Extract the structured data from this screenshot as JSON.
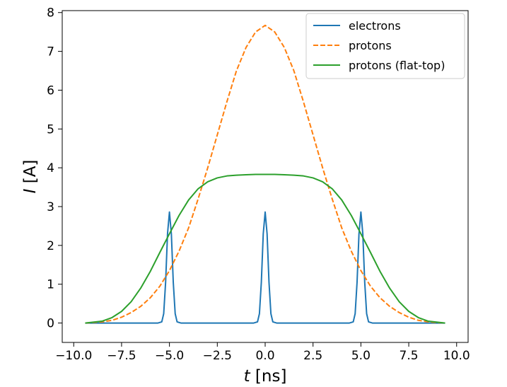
{
  "chart_data": {
    "type": "line",
    "xlabel": "t [ns]",
    "ylabel": "I [A]",
    "xlim": [
      -10.6,
      10.6
    ],
    "ylim": [
      -0.5,
      8.05
    ],
    "xticks": [
      -10.0,
      -7.5,
      -5.0,
      -2.5,
      0.0,
      2.5,
      5.0,
      7.5,
      10.0
    ],
    "xtick_labels": [
      "−10.0",
      "−7.5",
      "−5.0",
      "−2.5",
      "0.0",
      "2.5",
      "5.0",
      "7.5",
      "10.0"
    ],
    "yticks": [
      0,
      1,
      2,
      3,
      4,
      5,
      6,
      7,
      8
    ],
    "ytick_labels": [
      "0",
      "1",
      "2",
      "3",
      "4",
      "5",
      "6",
      "7",
      "8"
    ],
    "grid": false,
    "legend_position": "top-right",
    "x_range": [
      -9.4,
      9.4
    ],
    "series": [
      {
        "name": "electrons",
        "color": "#1f77b4",
        "style": "solid",
        "x": [
          -9.4,
          -5.6,
          -5.4,
          -5.3,
          -5.2,
          -5.1,
          -5.0,
          -4.9,
          -4.8,
          -4.7,
          -4.6,
          -4.4,
          -0.6,
          -0.4,
          -0.3,
          -0.2,
          -0.1,
          0.0,
          0.1,
          0.2,
          0.3,
          0.4,
          0.6,
          4.4,
          4.6,
          4.7,
          4.8,
          4.9,
          5.0,
          5.1,
          5.2,
          5.3,
          5.4,
          5.6,
          9.4
        ],
        "y": [
          0.0,
          0.0,
          0.03,
          0.24,
          1.05,
          2.3,
          2.86,
          2.3,
          1.05,
          0.24,
          0.03,
          0.0,
          0.0,
          0.03,
          0.24,
          1.05,
          2.3,
          2.86,
          2.3,
          1.05,
          0.24,
          0.03,
          0.0,
          0.0,
          0.03,
          0.24,
          1.05,
          2.3,
          2.86,
          2.3,
          1.05,
          0.24,
          0.03,
          0.0,
          0.0
        ]
      },
      {
        "name": "protons",
        "color": "#ff7f0e",
        "style": "dashed",
        "x": [
          -9.4,
          -8.5,
          -8.0,
          -7.5,
          -7.0,
          -6.5,
          -6.0,
          -5.5,
          -5.0,
          -4.5,
          -4.0,
          -3.5,
          -3.0,
          -2.5,
          -2.0,
          -1.5,
          -1.0,
          -0.5,
          0.0,
          0.5,
          1.0,
          1.5,
          2.0,
          2.5,
          3.0,
          3.5,
          4.0,
          4.5,
          5.0,
          5.5,
          6.0,
          6.5,
          7.0,
          7.5,
          8.0,
          8.5,
          9.4
        ],
        "y": [
          0.0,
          0.03,
          0.07,
          0.15,
          0.27,
          0.43,
          0.65,
          0.95,
          1.35,
          1.85,
          2.45,
          3.2,
          4.0,
          4.85,
          5.7,
          6.5,
          7.1,
          7.5,
          7.67,
          7.5,
          7.1,
          6.5,
          5.7,
          4.85,
          4.0,
          3.2,
          2.45,
          1.85,
          1.35,
          0.95,
          0.65,
          0.43,
          0.27,
          0.15,
          0.07,
          0.03,
          0.0
        ]
      },
      {
        "name": "protons (flat-top)",
        "color": "#2ca02c",
        "style": "solid",
        "x": [
          -9.4,
          -8.5,
          -8.0,
          -7.5,
          -7.0,
          -6.5,
          -6.0,
          -5.5,
          -5.0,
          -4.5,
          -4.0,
          -3.5,
          -3.0,
          -2.5,
          -2.0,
          -1.5,
          -1.0,
          -0.5,
          0.0,
          0.5,
          1.0,
          1.5,
          2.0,
          2.5,
          3.0,
          3.5,
          4.0,
          4.5,
          5.0,
          5.5,
          6.0,
          6.5,
          7.0,
          7.5,
          8.0,
          8.5,
          9.4
        ],
        "y": [
          0.0,
          0.05,
          0.14,
          0.3,
          0.55,
          0.9,
          1.33,
          1.82,
          2.3,
          2.77,
          3.17,
          3.46,
          3.64,
          3.74,
          3.79,
          3.81,
          3.82,
          3.83,
          3.83,
          3.83,
          3.82,
          3.81,
          3.79,
          3.74,
          3.64,
          3.46,
          3.17,
          2.77,
          2.3,
          1.82,
          1.33,
          0.9,
          0.55,
          0.3,
          0.14,
          0.05,
          0.0
        ]
      }
    ]
  }
}
